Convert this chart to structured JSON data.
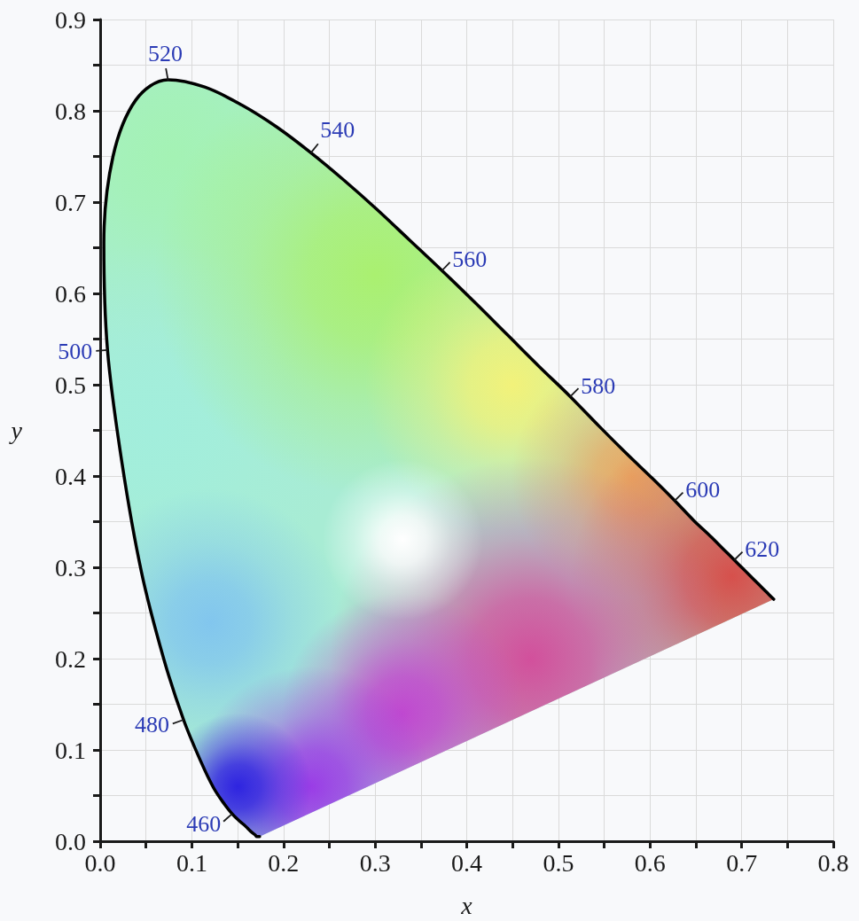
{
  "chart_data": {
    "type": "line",
    "xlabel": "x",
    "ylabel": "y",
    "x": [
      0.174,
      0.173,
      0.171,
      0.169,
      0.164,
      0.161,
      0.157,
      0.151,
      0.144,
      0.136,
      0.124,
      0.11,
      0.091,
      0.069,
      0.045,
      0.024,
      0.008,
      0.004,
      0.014,
      0.039,
      0.074,
      0.114,
      0.155,
      0.193,
      0.23,
      0.266,
      0.302,
      0.337,
      0.373,
      0.409,
      0.444,
      0.479,
      0.513,
      0.545,
      0.575,
      0.603,
      0.627,
      0.648,
      0.666,
      0.68,
      0.692,
      0.701,
      0.708,
      0.719,
      0.726,
      0.73,
      0.733,
      0.735
    ],
    "series": [
      {
        "color": "#000000",
        "values": [
          0.005,
          0.005,
          0.005,
          0.007,
          0.011,
          0.014,
          0.018,
          0.023,
          0.03,
          0.04,
          0.058,
          0.087,
          0.133,
          0.201,
          0.295,
          0.413,
          0.538,
          0.655,
          0.75,
          0.812,
          0.834,
          0.826,
          0.806,
          0.782,
          0.754,
          0.724,
          0.692,
          0.659,
          0.625,
          0.59,
          0.555,
          0.52,
          0.487,
          0.454,
          0.424,
          0.397,
          0.373,
          0.351,
          0.334,
          0.32,
          0.308,
          0.299,
          0.292,
          0.281,
          0.274,
          0.27,
          0.267,
          0.265
        ]
      }
    ],
    "xlim": [
      0,
      0.8
    ],
    "ylim": [
      0,
      0.9
    ],
    "xticks": [
      {
        "value": 0,
        "label": "0.0"
      },
      {
        "value": 0.05,
        "label": null
      },
      0.1,
      {
        "value": 0.15,
        "label": null
      },
      0.2,
      {
        "value": 0.25,
        "label": null
      },
      0.3,
      {
        "value": 0.35,
        "label": null
      },
      0.4,
      {
        "value": 0.45,
        "label": null
      },
      0.5,
      {
        "value": 0.55,
        "label": null
      },
      0.6,
      {
        "value": 0.65,
        "label": null
      },
      0.7,
      {
        "value": 0.75,
        "label": null
      },
      0.8
    ],
    "yticks": [
      {
        "value": 0,
        "label": "0.0"
      },
      {
        "value": 0.05,
        "label": null
      },
      0.1,
      {
        "value": 0.15,
        "label": null
      },
      0.2,
      {
        "value": 0.25,
        "label": null
      },
      0.3,
      {
        "value": 0.35,
        "label": null
      },
      0.4,
      {
        "value": 0.45,
        "label": null
      },
      0.5,
      {
        "value": 0.55,
        "label": null
      },
      0.6,
      {
        "value": 0.65,
        "label": null
      },
      0.7,
      {
        "value": 0.75,
        "label": null
      },
      0.8,
      {
        "value": 0.85,
        "label": null
      },
      0.9
    ],
    "grid": true,
    "marker": "none",
    "line_style": "solid",
    "annotations": [
      {
        "text": "460",
        "x": 0.144,
        "y": 0.03
      },
      {
        "text": "480",
        "x": 0.091,
        "y": 0.133
      },
      {
        "text": "500",
        "x": 0.008,
        "y": 0.538
      },
      {
        "text": "520",
        "x": 0.074,
        "y": 0.834
      },
      {
        "text": "540",
        "x": 0.23,
        "y": 0.754
      },
      {
        "text": "560",
        "x": 0.373,
        "y": 0.625
      },
      {
        "text": "580",
        "x": 0.513,
        "y": 0.487
      },
      {
        "text": "600",
        "x": 0.627,
        "y": 0.373
      },
      {
        "text": "620",
        "x": 0.692,
        "y": 0.308
      }
    ]
  }
}
